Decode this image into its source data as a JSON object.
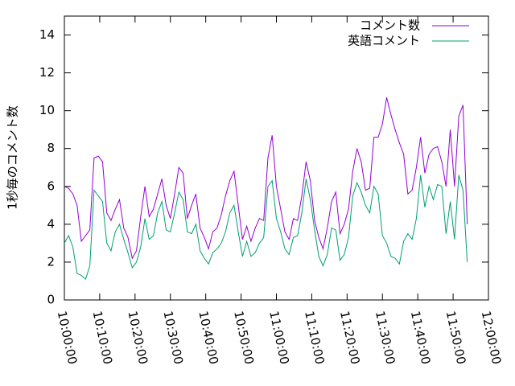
{
  "chart_data": {
    "type": "line",
    "x": [
      "10:00:00",
      "10:01:12",
      "10:02:24",
      "10:03:36",
      "10:04:48",
      "10:06:00",
      "10:07:12",
      "10:08:24",
      "10:09:36",
      "10:10:48",
      "10:12:00",
      "10:13:12",
      "10:14:24",
      "10:15:36",
      "10:16:48",
      "10:18:00",
      "10:19:12",
      "10:20:24",
      "10:21:36",
      "10:22:48",
      "10:24:00",
      "10:25:12",
      "10:26:24",
      "10:27:36",
      "10:28:48",
      "10:30:00",
      "10:31:12",
      "10:32:24",
      "10:33:36",
      "10:34:48",
      "10:36:00",
      "10:37:12",
      "10:38:24",
      "10:39:36",
      "10:40:48",
      "10:42:00",
      "10:43:12",
      "10:44:24",
      "10:45:36",
      "10:46:48",
      "10:48:00",
      "10:49:12",
      "10:50:24",
      "10:51:36",
      "10:52:48",
      "10:54:00",
      "10:55:12",
      "10:56:24",
      "10:57:36",
      "10:58:48",
      "11:00:00",
      "11:01:12",
      "11:02:24",
      "11:03:36",
      "11:04:48",
      "11:06:00",
      "11:07:12",
      "11:08:24",
      "11:09:36",
      "11:10:48",
      "11:12:00",
      "11:13:12",
      "11:14:24",
      "11:15:36",
      "11:16:48",
      "11:18:00",
      "11:19:12",
      "11:20:24",
      "11:21:36",
      "11:22:48",
      "11:24:00",
      "11:25:12",
      "11:26:24",
      "11:27:36",
      "11:28:48",
      "11:30:00",
      "11:31:12",
      "11:32:24",
      "11:33:36",
      "11:34:48",
      "11:36:00",
      "11:37:12",
      "11:38:24",
      "11:39:36",
      "11:40:48",
      "11:42:00",
      "11:43:12",
      "11:44:24",
      "11:45:36",
      "11:46:48",
      "11:48:00",
      "11:49:12",
      "11:50:24",
      "11:51:36",
      "11:52:48",
      "11:54:00"
    ],
    "series": [
      {
        "name": "コメント数",
        "color": "#9400d3",
        "values": [
          6.0,
          5.9,
          5.6,
          5.0,
          3.1,
          3.4,
          3.7,
          7.5,
          7.6,
          7.3,
          4.6,
          4.2,
          4.8,
          5.3,
          3.8,
          3.3,
          2.2,
          2.6,
          4.4,
          6.0,
          4.4,
          4.8,
          5.6,
          6.4,
          5.0,
          4.3,
          5.6,
          7.0,
          6.7,
          4.3,
          5.0,
          5.6,
          3.8,
          3.3,
          2.7,
          3.6,
          3.8,
          4.5,
          5.5,
          6.3,
          6.8,
          5.0,
          3.2,
          3.9,
          3.1,
          3.8,
          4.3,
          4.2,
          7.5,
          8.7,
          6.0,
          4.8,
          3.6,
          3.2,
          4.3,
          4.2,
          5.5,
          7.3,
          6.3,
          4.2,
          3.3,
          2.7,
          3.8,
          5.2,
          5.7,
          3.5,
          4.0,
          4.8,
          6.8,
          8.0,
          7.3,
          5.8,
          5.9,
          8.6,
          8.6,
          9.3,
          10.7,
          9.8,
          9.0,
          8.3,
          7.7,
          5.6,
          5.8,
          7.0,
          8.6,
          6.7,
          7.7,
          8.0,
          8.1,
          7.3,
          6.0,
          9.0,
          6.0,
          9.7,
          10.3,
          4.0
        ]
      },
      {
        "name": "英語コメント",
        "color": "#009e73",
        "values": [
          3.0,
          3.4,
          2.8,
          1.4,
          1.3,
          1.1,
          1.8,
          5.8,
          5.5,
          5.2,
          3.0,
          2.6,
          3.6,
          4.0,
          3.2,
          2.5,
          1.7,
          2.0,
          2.8,
          4.3,
          3.2,
          3.4,
          4.6,
          5.2,
          3.7,
          3.6,
          4.6,
          5.7,
          5.3,
          3.6,
          3.5,
          4.0,
          2.6,
          2.2,
          1.9,
          2.5,
          2.7,
          3.0,
          3.6,
          4.6,
          5.0,
          3.6,
          2.3,
          3.1,
          2.3,
          2.5,
          3.0,
          3.3,
          6.0,
          6.3,
          4.3,
          3.6,
          2.7,
          2.4,
          3.3,
          3.4,
          4.6,
          6.4,
          5.3,
          3.7,
          2.3,
          1.8,
          2.4,
          3.8,
          3.7,
          2.1,
          2.4,
          3.3,
          5.5,
          6.2,
          5.7,
          5.0,
          4.6,
          6.0,
          5.6,
          3.4,
          3.0,
          2.3,
          2.2,
          1.9,
          3.1,
          3.5,
          3.2,
          4.3,
          6.6,
          4.9,
          6.0,
          5.3,
          6.1,
          6.0,
          3.5,
          5.2,
          3.2,
          6.6,
          5.8,
          2.0
        ]
      }
    ],
    "y_label": "1秒毎のコメント数",
    "xlim": [
      "10:00:00",
      "12:00:00"
    ],
    "xticks": [
      "10:00:00",
      "10:10:00",
      "10:20:00",
      "10:30:00",
      "10:40:00",
      "10:50:00",
      "11:00:00",
      "11:10:00",
      "11:20:00",
      "11:30:00",
      "11:40:00",
      "11:50:00",
      "12:00:00"
    ],
    "ylim": [
      0,
      15
    ],
    "yticks": [
      0,
      2,
      4,
      6,
      8,
      10,
      12,
      14
    ],
    "grid": false,
    "legend": "top-right"
  }
}
